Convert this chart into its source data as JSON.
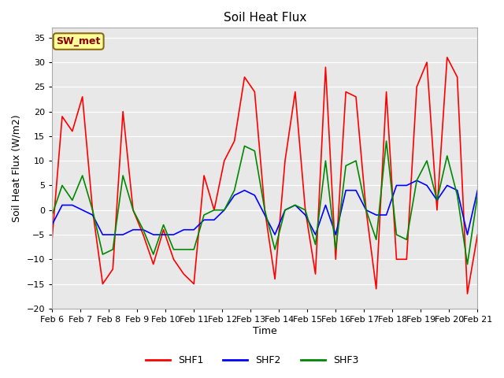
{
  "title": "Soil Heat Flux",
  "xlabel": "Time",
  "ylabel": "Soil Heat Flux (W/m2)",
  "ylim": [
    -20,
    37
  ],
  "yticks": [
    -20,
    -15,
    -10,
    -5,
    0,
    5,
    10,
    15,
    20,
    25,
    30,
    35
  ],
  "annotation": "SW_met",
  "annotation_color": "#8B0000",
  "annotation_bg": "#FFFF99",
  "annotation_edge": "#8B6914",
  "fig_bg": "#FFFFFF",
  "plot_bg": "#E8E8E8",
  "line_colors": {
    "SHF1": "#FF0000",
    "SHF2": "#0000FF",
    "SHF3": "#008800"
  },
  "xtick_labels": [
    "Feb 6",
    "Feb 7",
    "Feb 8",
    "Feb 9",
    "Feb 10",
    "Feb 11",
    "Feb 12",
    "Feb 13",
    "Feb 14",
    "Feb 15",
    "Feb 16",
    "Feb 17",
    "Feb 18",
    "Feb 19",
    "Feb 20",
    "Feb 21"
  ],
  "SHF1": [
    -6,
    19,
    16,
    23,
    0,
    -15,
    -12,
    20,
    0,
    -5,
    -11,
    -4,
    -10,
    -13,
    -15,
    7,
    0,
    10,
    14,
    27,
    24,
    0,
    -14,
    10,
    24,
    0,
    -13,
    29,
    -10,
    24,
    23,
    0,
    -16,
    24,
    -10,
    -10,
    25,
    30,
    0,
    31,
    27,
    -17,
    -5
  ],
  "SHF2": [
    -3,
    1,
    1,
    0,
    -1,
    -5,
    -5,
    -5,
    -4,
    -4,
    -5,
    -5,
    -5,
    -4,
    -4,
    -2,
    -2,
    0,
    3,
    4,
    3,
    -1,
    -5,
    0,
    1,
    -1,
    -5,
    1,
    -5,
    4,
    4,
    0,
    -1,
    -1,
    5,
    5,
    6,
    5,
    2,
    5,
    4,
    -5,
    4
  ],
  "SHF3": [
    -1,
    5,
    2,
    7,
    0,
    -9,
    -8,
    7,
    0,
    -4,
    -9,
    -3,
    -8,
    -8,
    -8,
    -1,
    0,
    0,
    4,
    13,
    12,
    0,
    -8,
    0,
    1,
    0,
    -7,
    10,
    -8,
    9,
    10,
    0,
    -6,
    14,
    -5,
    -6,
    6,
    10,
    2,
    11,
    3,
    -11,
    3
  ],
  "linewidth": 1.2,
  "title_fontsize": 11,
  "tick_fontsize": 8,
  "ylabel_fontsize": 9,
  "xlabel_fontsize": 9
}
